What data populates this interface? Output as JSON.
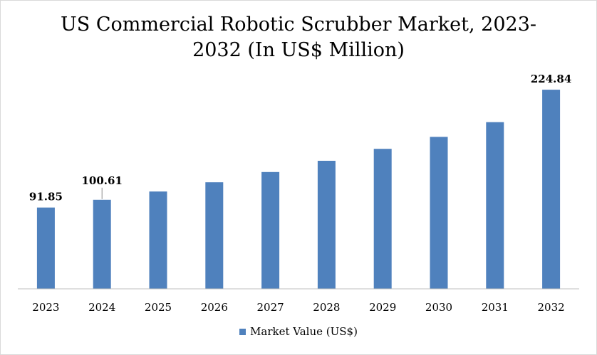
{
  "chart_data": {
    "type": "bar",
    "title_line1": "US Commercial Robotic Scrubber Market, 2023-",
    "title_line2": "2032 (In US$ Million)",
    "categories": [
      "2023",
      "2024",
      "2025",
      "2026",
      "2027",
      "2028",
      "2029",
      "2030",
      "2031",
      "2032"
    ],
    "series": [
      {
        "name": "Market Value (US$)",
        "values": [
          91.85,
          100.61,
          109.9,
          120.3,
          131.9,
          144.6,
          158.1,
          171.6,
          188.2,
          224.84
        ],
        "color": "#4f81bd"
      }
    ],
    "data_labels": {
      "2023": "91.85",
      "2024": "100.61",
      "2032": "224.84"
    },
    "ylim": [
      0,
      245
    ],
    "grid": false,
    "legend_position": "bottom"
  }
}
